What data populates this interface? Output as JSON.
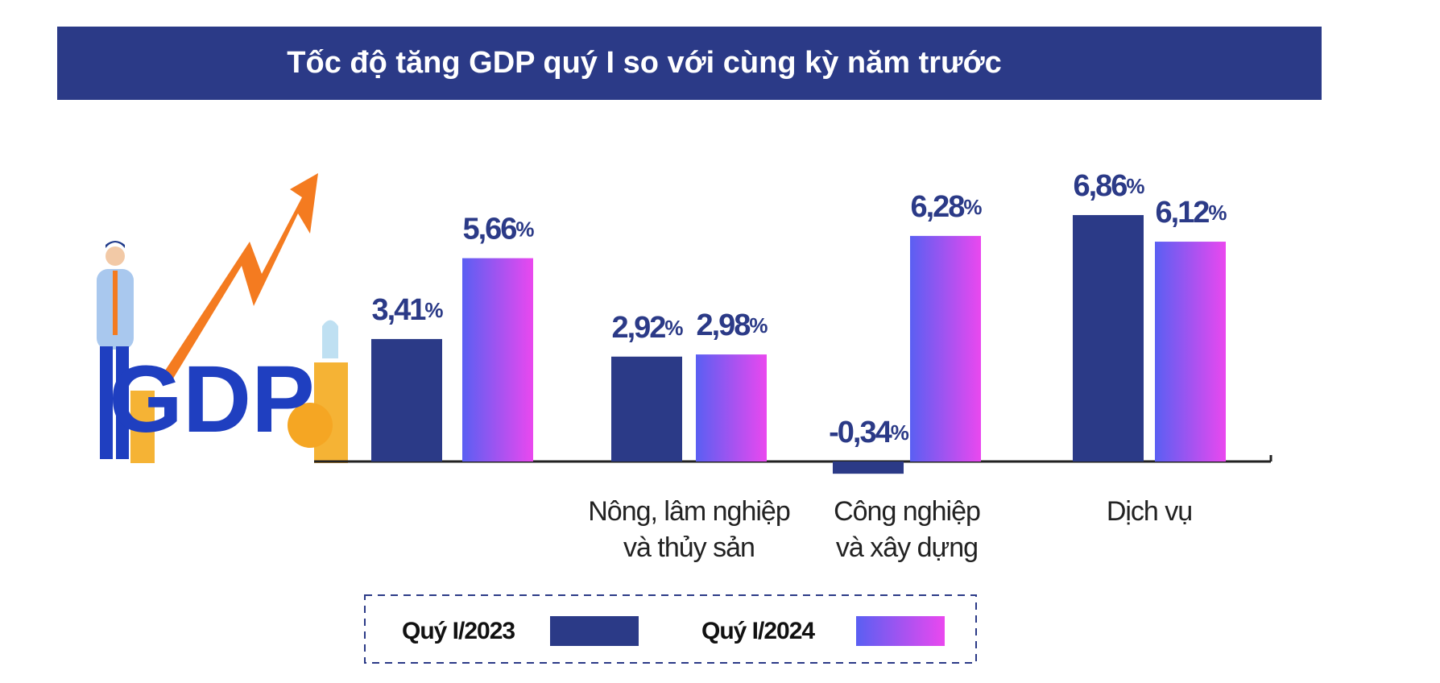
{
  "chart_data": {
    "type": "bar",
    "title": "Tốc độ tăng GDP quý I so với cùng kỳ năm trước",
    "illustration_text": "GDP",
    "categories": [
      null,
      [
        "Nông, lâm nghiệp",
        "và thủy sản"
      ],
      [
        "Công nghiệp",
        "và xây dựng"
      ],
      [
        "Dịch vụ"
      ]
    ],
    "series": [
      {
        "name": "Quý I/2023",
        "color": "#2b3a87",
        "values": [
          3.41,
          2.92,
          -0.34,
          6.86
        ],
        "value_labels": [
          "3,41%",
          "2,92%",
          "-0,34%",
          "6,86%"
        ]
      },
      {
        "name": "Quý I/2024",
        "color": [
          "#5a5ff2",
          "#ea48ef"
        ],
        "values": [
          5.66,
          2.98,
          6.28,
          6.12
        ],
        "value_labels": [
          "5,66%",
          "2,98%",
          "6,28%",
          "6,12%"
        ]
      }
    ]
  }
}
